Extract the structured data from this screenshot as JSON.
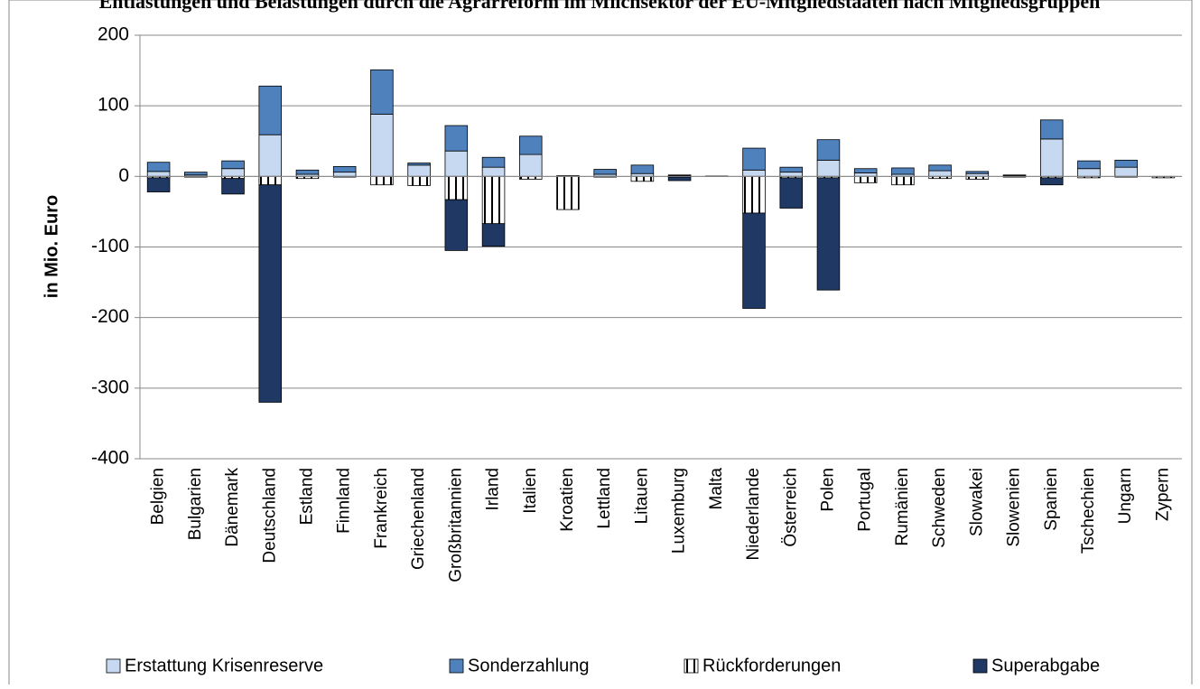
{
  "chart_data": {
    "type": "bar",
    "stacked": true,
    "title": "Entlastungen und Belastungen durch die Agrarreform im Milchsektor der EU-Mitgliedstaaten nach Mitgliedsgruppen",
    "ylabel": "in Mio. Euro",
    "categories": [
      "Belgien",
      "Bulgarien",
      "Dänemark",
      "Deutschland",
      "Estland",
      "Finnland",
      "Frankreich",
      "Griechenland",
      "Großbritannien",
      "Irland",
      "Italien",
      "Kroatien",
      "Lettland",
      "Litauen",
      "Luxemburg",
      "Malta",
      "Niederlande",
      "Österreich",
      "Polen",
      "Portugal",
      "Rumänien",
      "Schweden",
      "Slowakei",
      "Slowenien",
      "Spanien",
      "Tschechien",
      "Ungarn",
      "Zypern"
    ],
    "series": [
      {
        "name": "Erstattung Krisenreserve",
        "color": "#c6d9f1",
        "values": [
          7,
          2,
          11,
          59,
          3,
          6,
          88,
          16,
          36,
          13,
          31,
          1,
          3,
          4,
          1,
          0.5,
          9,
          6,
          23,
          5,
          3,
          8,
          4,
          1,
          53,
          11,
          13,
          0
        ]
      },
      {
        "name": "Sonderzahlung",
        "color": "#4f81bd",
        "values": [
          13,
          4,
          11,
          69,
          6,
          8,
          63,
          3,
          36,
          14,
          26,
          0,
          7,
          12,
          1,
          0,
          31,
          7,
          29,
          6,
          9,
          8,
          3,
          1,
          27,
          11,
          10,
          0
        ]
      },
      {
        "name": "Rückforderungen",
        "color": "#ffffff",
        "hatch": true,
        "values": [
          -2,
          -1,
          -3,
          -12,
          -3,
          -1,
          -12,
          -13,
          -33,
          -67,
          -4,
          -47,
          -1,
          -7,
          -1,
          0,
          -52,
          -2,
          -2,
          -9,
          -12,
          -3,
          -4,
          -1,
          -2,
          -2,
          -1,
          -2
        ]
      },
      {
        "name": "Superabgabe",
        "color": "#1f3864",
        "values": [
          -20,
          0,
          -22,
          -308,
          0,
          0,
          0,
          0,
          -72,
          -32,
          0,
          0,
          0,
          0,
          -5,
          0,
          -135,
          -43,
          -159,
          0,
          0,
          0,
          0,
          0,
          -10,
          0,
          0,
          0
        ]
      }
    ],
    "ylim": [
      -400,
      200
    ],
    "yticks": [
      -400,
      -300,
      -200,
      -100,
      0,
      100,
      200
    ],
    "grid": true,
    "legend": "bottom"
  }
}
